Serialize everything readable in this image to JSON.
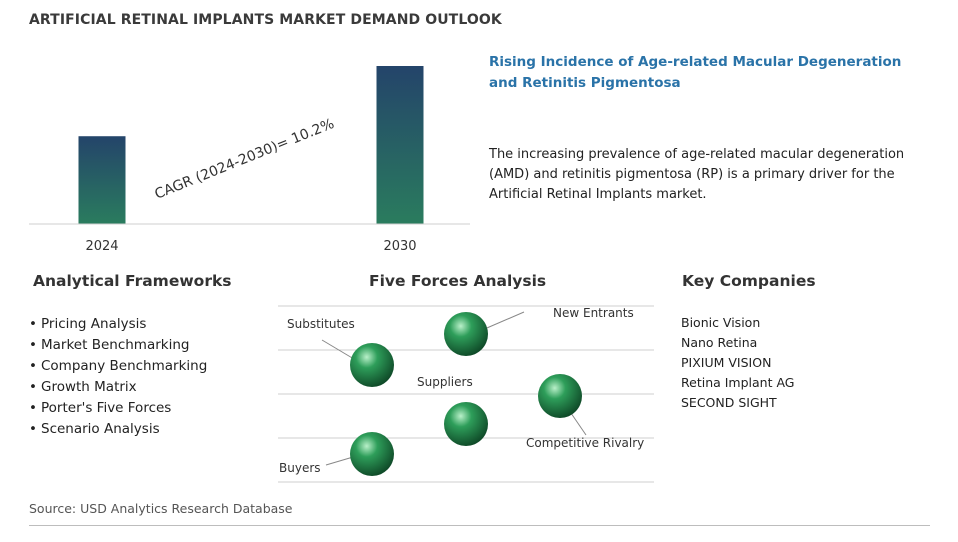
{
  "title": "ARTIFICIAL RETINAL IMPLANTS MARKET DEMAND OUTLOOK",
  "chart_data": {
    "type": "bar",
    "categories": [
      "2024",
      "2030"
    ],
    "values": [
      1.0,
      1.8
    ],
    "annotation": "CAGR (2024-2030)=  10.2%",
    "colors": {
      "bar_top": "#24446a",
      "bar_bottom": "#2a7c5e"
    }
  },
  "driver": {
    "title": "Rising Incidence of Age-related Macular Degeneration and Retinitis Pigmentosa",
    "text": "The increasing prevalence of age-related macular degeneration (AMD) and retinitis pigmentosa (RP) is a primary driver for the Artificial Retinal Implants market."
  },
  "frameworks": {
    "heading": "Analytical Frameworks",
    "items": [
      "Pricing Analysis",
      "Market Benchmarking",
      "Company Benchmarking",
      "Growth Matrix",
      "Porter's Five Forces",
      "Scenario Analysis"
    ]
  },
  "five_forces": {
    "heading": "Five Forces Analysis",
    "labels": {
      "new_entrants": "New Entrants",
      "substitutes": "Substitutes",
      "suppliers": "Suppliers",
      "competitive_rivalry": "Competitive Rivalry",
      "buyers": "Buyers"
    },
    "sphere_color": "#2e9e5a"
  },
  "companies": {
    "heading": "Key Companies",
    "items": [
      "Bionic Vision",
      "Nano Retina",
      "PIXIUM VISION",
      "Retina Implant AG",
      "SECOND SIGHT"
    ]
  },
  "source": "Source: USD Analytics Research Database"
}
